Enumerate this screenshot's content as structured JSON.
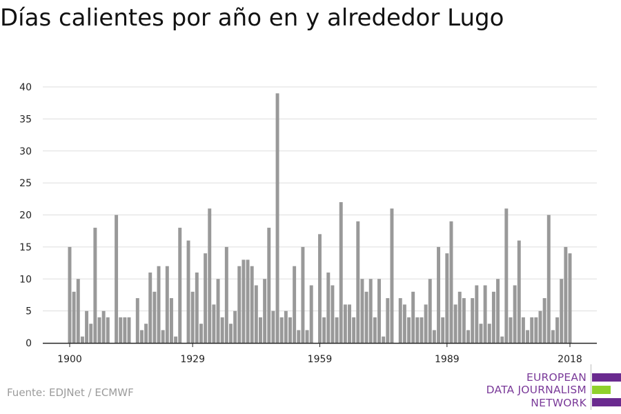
{
  "title": "Días calientes por año en y alrededor Lugo",
  "source": "Fuente: EDJNet / ECMWF",
  "logo": {
    "line1": "EUROPEAN",
    "line2": "DATA JOURNALISM",
    "line3": "NETWORK",
    "colors": {
      "purple": "#6a2a8f",
      "green": "#8fd12b",
      "text": "#7a3a99"
    }
  },
  "colors": {
    "bar": "#999999",
    "grid": "#dddddd",
    "axis": "#222222"
  },
  "chart_data": {
    "type": "bar",
    "title": "Días calientes por año en y alrededor Lugo",
    "xlabel": "",
    "ylabel": "",
    "ylim": [
      0,
      40
    ],
    "yticks": [
      0,
      5,
      10,
      15,
      20,
      25,
      30,
      35,
      40
    ],
    "xticks": [
      1900,
      1929,
      1959,
      1989,
      2018
    ],
    "grid": true,
    "x": [
      1900,
      1901,
      1902,
      1903,
      1904,
      1905,
      1906,
      1907,
      1908,
      1909,
      1910,
      1911,
      1912,
      1913,
      1914,
      1915,
      1916,
      1917,
      1918,
      1919,
      1920,
      1921,
      1922,
      1923,
      1924,
      1925,
      1926,
      1927,
      1928,
      1929,
      1930,
      1931,
      1932,
      1933,
      1934,
      1935,
      1936,
      1937,
      1938,
      1939,
      1940,
      1941,
      1942,
      1943,
      1944,
      1945,
      1946,
      1947,
      1948,
      1949,
      1950,
      1951,
      1952,
      1953,
      1954,
      1955,
      1956,
      1957,
      1958,
      1959,
      1960,
      1961,
      1962,
      1963,
      1964,
      1965,
      1966,
      1967,
      1968,
      1969,
      1970,
      1971,
      1972,
      1973,
      1974,
      1975,
      1976,
      1977,
      1978,
      1979,
      1980,
      1981,
      1982,
      1983,
      1984,
      1985,
      1986,
      1987,
      1988,
      1989,
      1990,
      1991,
      1992,
      1993,
      1994,
      1995,
      1996,
      1997,
      1998,
      1999,
      2000,
      2001,
      2002,
      2003,
      2004,
      2005,
      2006,
      2007,
      2008,
      2009,
      2010,
      2011,
      2012,
      2013,
      2014,
      2015,
      2016,
      2017,
      2018
    ],
    "values": [
      15,
      8,
      10,
      1,
      5,
      3,
      18,
      4,
      5,
      4,
      0,
      20,
      4,
      4,
      4,
      0,
      7,
      2,
      3,
      11,
      8,
      12,
      2,
      12,
      7,
      1,
      18,
      0,
      16,
      8,
      11,
      3,
      14,
      21,
      6,
      10,
      4,
      15,
      3,
      5,
      12,
      13,
      13,
      12,
      9,
      4,
      10,
      18,
      5,
      39,
      4,
      5,
      4,
      12,
      2,
      15,
      2,
      9,
      0,
      17,
      4,
      11,
      9,
      4,
      22,
      6,
      6,
      4,
      19,
      10,
      8,
      10,
      4,
      10,
      1,
      7,
      21,
      0,
      7,
      6,
      4,
      8,
      4,
      4,
      6,
      10,
      2,
      15,
      4,
      14,
      19,
      6,
      8,
      7,
      2,
      7,
      9,
      3,
      9,
      3,
      8,
      10,
      1,
      21,
      4,
      9,
      16,
      4,
      2,
      4,
      4,
      5,
      7,
      20,
      2,
      4,
      10,
      15,
      14
    ]
  }
}
